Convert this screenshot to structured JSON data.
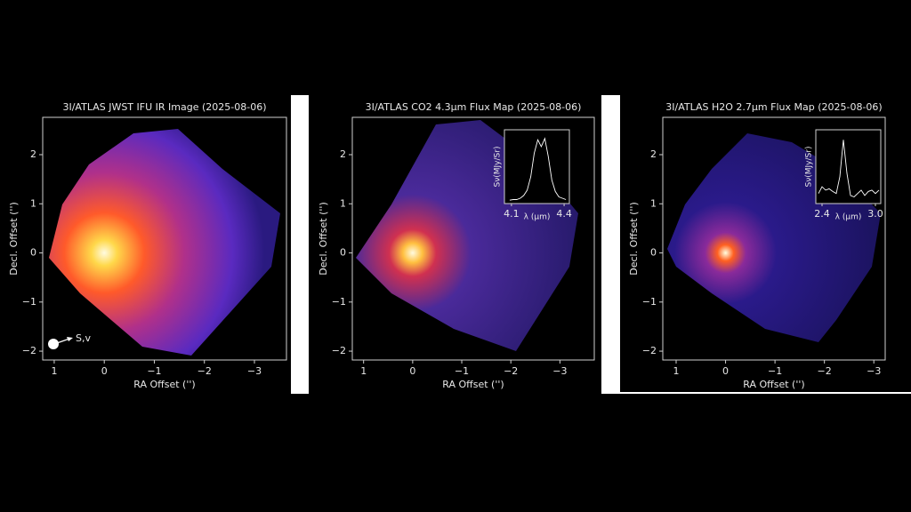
{
  "chart_data": [
    {
      "type": "image",
      "title": "3I/ATLAS JWST IFU IR Image (2025-08-06)",
      "x_label": "RA Offset ('')",
      "y_label": "Decl. Offset ('')",
      "xlim": [
        1.23,
        -3.64
      ],
      "ylim": [
        -2.18,
        2.76
      ],
      "xticks": [
        1,
        0,
        {
          "value": -1,
          "label": "−1"
        },
        {
          "value": -2,
          "label": "−2"
        },
        {
          "value": -3,
          "label": "−3"
        }
      ],
      "yticks": [
        {
          "value": -2,
          "label": "−2"
        },
        {
          "value": -1,
          "label": "−1"
        },
        0,
        1,
        2
      ],
      "annotation": "S,v"
    },
    {
      "type": "image",
      "title": "3I/ATLAS CO2 4.3μm Flux Map (2025-08-06)",
      "x_label": "RA Offset ('')",
      "y_label": "Decl. Offset ('')",
      "xlim": [
        1.23,
        -3.7
      ],
      "ylim": [
        -2.18,
        2.76
      ],
      "xticks": [
        1,
        0,
        {
          "value": -1,
          "label": "−1"
        },
        {
          "value": -2,
          "label": "−2"
        },
        {
          "value": -3,
          "label": "−3"
        }
      ],
      "yticks": [
        {
          "value": -2,
          "label": "−2"
        },
        {
          "value": -1,
          "label": "−1"
        },
        0,
        1,
        2
      ],
      "inset": {
        "type": "line",
        "x_label": "λ (μm)",
        "y_label": "Sν(MJy/Sr)",
        "xlim": [
          4.06,
          4.43
        ],
        "ylim": [
          0,
          1.1
        ],
        "xticks": [
          4.1,
          4.4
        ],
        "color": "#ffffff",
        "x": [
          4.09,
          4.11,
          4.13,
          4.15,
          4.17,
          4.19,
          4.21,
          4.23,
          4.25,
          4.27,
          4.29,
          4.31,
          4.33,
          4.35,
          4.37,
          4.39,
          4.41
        ],
        "values": [
          0.05,
          0.06,
          0.06,
          0.08,
          0.12,
          0.2,
          0.4,
          0.75,
          0.95,
          0.85,
          0.97,
          0.7,
          0.35,
          0.18,
          0.1,
          0.08,
          0.06
        ]
      }
    },
    {
      "type": "image",
      "title": "3I/ATLAS H2O 2.7μm Flux Map (2025-08-06)",
      "x_label": "RA Offset ('')",
      "y_label": "Decl. Offset ('')",
      "xlim": [
        1.27,
        -3.23
      ],
      "ylim": [
        -2.18,
        2.76
      ],
      "xticks": [
        1,
        0,
        {
          "value": -1,
          "label": "−1"
        },
        {
          "value": -2,
          "label": "−2"
        },
        {
          "value": -3,
          "label": "−3"
        }
      ],
      "yticks": [
        {
          "value": -2,
          "label": "−2"
        },
        {
          "value": -1,
          "label": "−1"
        },
        0,
        1,
        2
      ],
      "inset": {
        "type": "line",
        "x_label": "λ (μm)",
        "y_label": "Sν(MJy/Sr)",
        "xlim": [
          2.33,
          3.06
        ],
        "ylim": [
          0,
          1.1
        ],
        "xticks": [
          2.4,
          {
            "value": 3.0,
            "label": "3.0"
          }
        ],
        "color": "#ffffff",
        "x": [
          2.36,
          2.4,
          2.44,
          2.48,
          2.52,
          2.56,
          2.6,
          2.64,
          2.68,
          2.72,
          2.76,
          2.8,
          2.84,
          2.88,
          2.92,
          2.96,
          3.0,
          3.04
        ],
        "values": [
          0.15,
          0.25,
          0.2,
          0.22,
          0.18,
          0.15,
          0.4,
          0.95,
          0.45,
          0.12,
          0.1,
          0.15,
          0.2,
          0.12,
          0.18,
          0.2,
          0.15,
          0.2
        ]
      }
    }
  ]
}
